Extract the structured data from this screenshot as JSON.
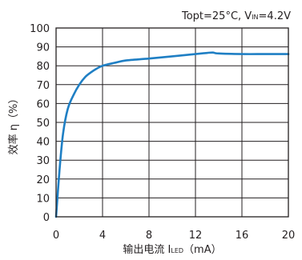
{
  "chart_data": {
    "type": "line",
    "annotation": {
      "prefix": "Topt=25°C, V",
      "subscript": "IN",
      "suffix": "=4.2V"
    },
    "xlabel": {
      "main": "输出电流 I",
      "subscript": "LED",
      "unit": "（mA）"
    },
    "ylabel": "效率 η（%）",
    "xlim": [
      0,
      20
    ],
    "ylim": [
      0,
      100
    ],
    "x_ticks": [
      "0",
      "4",
      "8",
      "12",
      "16",
      "20"
    ],
    "y_ticks": [
      "0",
      "10",
      "20",
      "30",
      "40",
      "50",
      "60",
      "70",
      "80",
      "90",
      "100"
    ],
    "grid": true,
    "series": [
      {
        "color": "#1f7fc4",
        "x": [
          0,
          0.3,
          0.6,
          1,
          1.5,
          2,
          2.5,
          3,
          3.5,
          4,
          5,
          6,
          8,
          10,
          12,
          13,
          13.5,
          14,
          16,
          18,
          20
        ],
        "y": [
          0,
          25,
          44,
          57,
          64.5,
          70,
          74,
          76.5,
          78.5,
          80,
          81.5,
          82.8,
          83.8,
          85,
          86.2,
          86.8,
          87,
          86.5,
          86.2,
          86.2,
          86.2
        ]
      }
    ]
  }
}
